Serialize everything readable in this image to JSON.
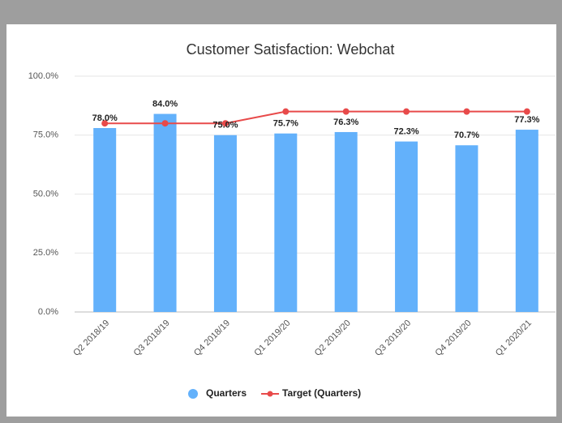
{
  "chart_data": {
    "type": "bar",
    "title": "Customer Satisfaction: Webchat",
    "categories": [
      "Q2 2018/19",
      "Q3 2018/19",
      "Q4 2018/19",
      "Q1 2019/20",
      "Q2 2019/20",
      "Q3 2019/20",
      "Q4 2019/20",
      "Q1 2020/21"
    ],
    "series": [
      {
        "name": "Quarters",
        "type": "bar",
        "color": "#63b1fb",
        "values": [
          78.0,
          84.0,
          75.0,
          75.7,
          76.3,
          72.3,
          70.7,
          77.3
        ],
        "value_labels": [
          "78.0%",
          "84.0%",
          "75.0%",
          "75.7%",
          "76.3%",
          "72.3%",
          "70.7%",
          "77.3%"
        ]
      },
      {
        "name": "Target (Quarters)",
        "type": "line",
        "color": "#e84a4a",
        "values": [
          80,
          80,
          80,
          85,
          85,
          85,
          85,
          85
        ]
      }
    ],
    "ylim": [
      0,
      100
    ],
    "yticks": [
      {
        "value": 0,
        "label": "0.0%"
      },
      {
        "value": 25,
        "label": "25.0%"
      },
      {
        "value": 50,
        "label": "50.0%"
      },
      {
        "value": 75,
        "label": "75.0%"
      },
      {
        "value": 100,
        "label": "100.0%"
      }
    ],
    "grid": true,
    "legend": "bottom"
  }
}
